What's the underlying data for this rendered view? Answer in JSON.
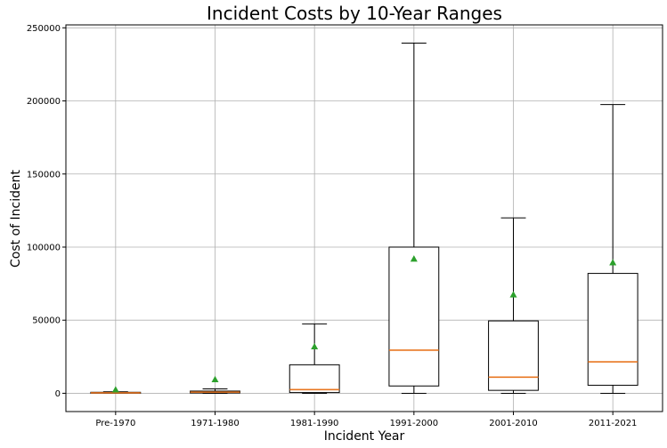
{
  "chart_data": {
    "type": "box",
    "title": "Incident Costs by 10-Year Ranges",
    "xlabel": "Incident Year",
    "ylabel": "Cost of Incident",
    "ylim": [
      -12500,
      252000
    ],
    "yticks": [
      0,
      50000,
      100000,
      150000,
      200000,
      250000
    ],
    "grid": true,
    "categories": [
      "Pre-1970",
      "1971-1980",
      "1981-1990",
      "1991-2000",
      "2001-2010",
      "2011-2021"
    ],
    "boxes": [
      {
        "category": "Pre-1970",
        "whisker_low": 0,
        "q1": 0,
        "median": 300,
        "q3": 700,
        "whisker_high": 1000,
        "mean": 2500
      },
      {
        "category": "1971-1980",
        "whisker_low": 0,
        "q1": 200,
        "median": 800,
        "q3": 1500,
        "whisker_high": 3000,
        "mean": 9500
      },
      {
        "category": "1981-1990",
        "whisker_low": 0,
        "q1": 500,
        "median": 2500,
        "q3": 19500,
        "whisker_high": 47500,
        "mean": 32000
      },
      {
        "category": "1991-2000",
        "whisker_low": 0,
        "q1": 5000,
        "median": 29500,
        "q3": 100000,
        "whisker_high": 239500,
        "mean": 92000
      },
      {
        "category": "2001-2010",
        "whisker_low": 0,
        "q1": 2000,
        "median": 11000,
        "q3": 49500,
        "whisker_high": 120000,
        "mean": 67500
      },
      {
        "category": "2011-2021",
        "whisker_low": 0,
        "q1": 5500,
        "median": 21500,
        "q3": 82000,
        "whisker_high": 197500,
        "mean": 89500
      }
    ],
    "colors": {
      "box": "#000000",
      "median": "#e87722",
      "mean": "#2ca02c",
      "grid": "#b0b0b0"
    }
  }
}
